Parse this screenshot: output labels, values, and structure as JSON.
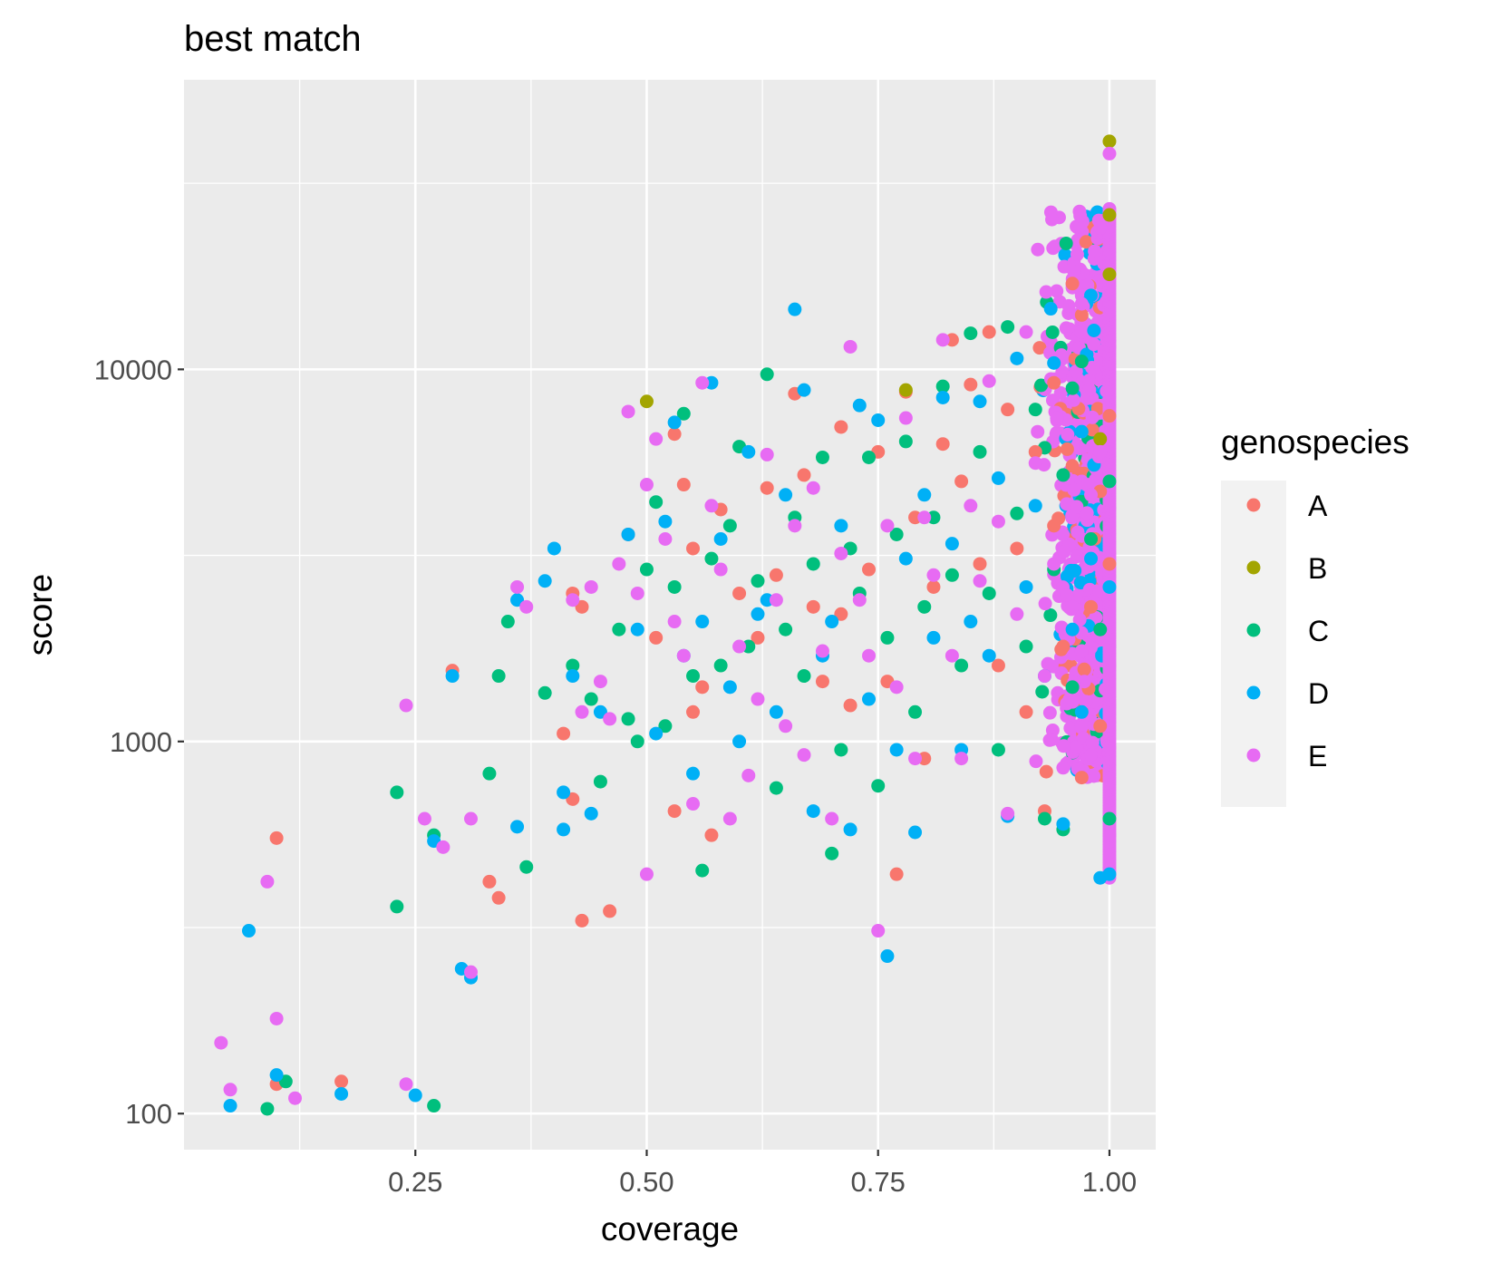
{
  "chart_data": {
    "type": "scatter",
    "title": "best match",
    "xlabel": "coverage",
    "ylabel": "score",
    "xlim": [
      0.0,
      1.05
    ],
    "ylim": [
      80,
      60000
    ],
    "y_scale": "log10",
    "x_ticks": [
      {
        "value": 0.25,
        "label": "0.25"
      },
      {
        "value": 0.5,
        "label": "0.50"
      },
      {
        "value": 0.75,
        "label": "0.75"
      },
      {
        "value": 1.0,
        "label": "1.00"
      }
    ],
    "x_minor_ticks": [
      0.125,
      0.375,
      0.625,
      0.875
    ],
    "y_ticks": [
      {
        "value": 100,
        "label": "100"
      },
      {
        "value": 1000,
        "label": "1000"
      },
      {
        "value": 10000,
        "label": "10000"
      }
    ],
    "y_minor_ticks": [
      316.2,
      3162.3,
      31622.8
    ],
    "grid": true,
    "background": "#ebebeb",
    "legend": {
      "title": "genospecies",
      "position": "right"
    },
    "series": [
      {
        "name": "A",
        "color": "#f8766d",
        "points": [
          [
            0.1,
            550
          ],
          [
            0.1,
            120
          ],
          [
            0.17,
            122
          ],
          [
            0.29,
            1550
          ],
          [
            0.33,
            420
          ],
          [
            0.34,
            380
          ],
          [
            0.41,
            1050
          ],
          [
            0.42,
            700
          ],
          [
            0.43,
            330
          ],
          [
            0.46,
            350
          ],
          [
            0.42,
            2500
          ],
          [
            0.43,
            2300
          ],
          [
            0.48,
            3600
          ],
          [
            0.51,
            1900
          ],
          [
            0.53,
            6700
          ],
          [
            0.54,
            4900
          ],
          [
            0.55,
            3300
          ],
          [
            0.55,
            1200
          ],
          [
            0.53,
            650
          ],
          [
            0.56,
            1400
          ],
          [
            0.57,
            560
          ],
          [
            0.58,
            4200
          ],
          [
            0.6,
            2500
          ],
          [
            0.62,
            1900
          ],
          [
            0.63,
            4800
          ],
          [
            0.64,
            2800
          ],
          [
            0.66,
            8600
          ],
          [
            0.67,
            5200
          ],
          [
            0.68,
            2300
          ],
          [
            0.69,
            1450
          ],
          [
            0.71,
            7000
          ],
          [
            0.71,
            2200
          ],
          [
            0.72,
            1250
          ],
          [
            0.74,
            2900
          ],
          [
            0.75,
            6000
          ],
          [
            0.76,
            1450
          ],
          [
            0.77,
            440
          ],
          [
            0.78,
            8700
          ],
          [
            0.79,
            4000
          ],
          [
            0.8,
            900
          ],
          [
            0.81,
            2600
          ],
          [
            0.82,
            6300
          ],
          [
            0.83,
            12000
          ],
          [
            0.84,
            5000
          ],
          [
            0.85,
            9100
          ],
          [
            0.86,
            3000
          ],
          [
            0.87,
            12600
          ],
          [
            0.88,
            1600
          ],
          [
            0.89,
            7800
          ],
          [
            0.9,
            3300
          ],
          [
            0.91,
            1200
          ],
          [
            0.92,
            6000
          ],
          [
            0.93,
            650
          ],
          [
            0.94,
            3800
          ],
          [
            0.95,
            1800
          ],
          [
            0.96,
            17000
          ],
          [
            0.97,
            800
          ],
          [
            0.98,
            2300
          ],
          [
            0.99,
            4700
          ],
          [
            1.0,
            7500
          ],
          [
            1.0,
            3000
          ],
          [
            0.97,
            14000
          ],
          [
            0.96,
            5500
          ],
          [
            0.99,
            1100
          ],
          [
            0.94,
            9200
          ]
        ]
      },
      {
        "name": "B",
        "color": "#a3a500",
        "points": [
          [
            1.0,
            41000
          ],
          [
            1.0,
            26000
          ],
          [
            0.5,
            8200
          ],
          [
            0.78,
            8800
          ],
          [
            1.0,
            18000
          ],
          [
            0.99,
            6500
          ]
        ]
      },
      {
        "name": "C",
        "color": "#00bf7d",
        "points": [
          [
            0.09,
            103
          ],
          [
            0.11,
            122
          ],
          [
            0.23,
            730
          ],
          [
            0.23,
            360
          ],
          [
            0.27,
            105
          ],
          [
            0.27,
            560
          ],
          [
            0.33,
            820
          ],
          [
            0.34,
            1500
          ],
          [
            0.35,
            2100
          ],
          [
            0.37,
            460
          ],
          [
            0.39,
            1350
          ],
          [
            0.42,
            1600
          ],
          [
            0.44,
            1300
          ],
          [
            0.45,
            780
          ],
          [
            0.47,
            2000
          ],
          [
            0.48,
            1150
          ],
          [
            0.49,
            1000
          ],
          [
            0.5,
            2900
          ],
          [
            0.51,
            4400
          ],
          [
            0.52,
            1100
          ],
          [
            0.53,
            2600
          ],
          [
            0.54,
            7600
          ],
          [
            0.55,
            1500
          ],
          [
            0.56,
            450
          ],
          [
            0.57,
            3100
          ],
          [
            0.58,
            1600
          ],
          [
            0.59,
            3800
          ],
          [
            0.6,
            6200
          ],
          [
            0.61,
            1800
          ],
          [
            0.62,
            2700
          ],
          [
            0.63,
            9700
          ],
          [
            0.64,
            750
          ],
          [
            0.65,
            2000
          ],
          [
            0.66,
            4000
          ],
          [
            0.67,
            1500
          ],
          [
            0.68,
            3000
          ],
          [
            0.69,
            5800
          ],
          [
            0.7,
            500
          ],
          [
            0.71,
            950
          ],
          [
            0.72,
            3300
          ],
          [
            0.73,
            2500
          ],
          [
            0.74,
            5800
          ],
          [
            0.75,
            760
          ],
          [
            0.76,
            1900
          ],
          [
            0.77,
            3600
          ],
          [
            0.78,
            6400
          ],
          [
            0.79,
            1200
          ],
          [
            0.8,
            2300
          ],
          [
            0.81,
            4000
          ],
          [
            0.82,
            9000
          ],
          [
            0.83,
            2800
          ],
          [
            0.84,
            1600
          ],
          [
            0.85,
            12500
          ],
          [
            0.86,
            6000
          ],
          [
            0.87,
            2500
          ],
          [
            0.88,
            950
          ],
          [
            0.89,
            13000
          ],
          [
            0.9,
            4100
          ],
          [
            0.91,
            1800
          ],
          [
            0.92,
            7800
          ],
          [
            0.93,
            620
          ],
          [
            0.94,
            2900
          ],
          [
            0.95,
            5200
          ],
          [
            0.96,
            1400
          ],
          [
            0.97,
            10500
          ],
          [
            0.98,
            3500
          ],
          [
            0.99,
            2000
          ],
          [
            1.0,
            620
          ],
          [
            1.0,
            5000
          ],
          [
            0.96,
            8900
          ],
          [
            0.95,
            580
          ]
        ]
      },
      {
        "name": "D",
        "color": "#00b0f6",
        "points": [
          [
            0.05,
            105
          ],
          [
            0.07,
            310
          ],
          [
            0.1,
            127
          ],
          [
            0.17,
            113
          ],
          [
            0.25,
            112
          ],
          [
            0.27,
            540
          ],
          [
            0.29,
            1500
          ],
          [
            0.3,
            245
          ],
          [
            0.31,
            232
          ],
          [
            0.36,
            590
          ],
          [
            0.36,
            2400
          ],
          [
            0.39,
            2700
          ],
          [
            0.4,
            3300
          ],
          [
            0.41,
            580
          ],
          [
            0.41,
            730
          ],
          [
            0.42,
            1500
          ],
          [
            0.44,
            640
          ],
          [
            0.45,
            1200
          ],
          [
            0.48,
            3600
          ],
          [
            0.49,
            2000
          ],
          [
            0.51,
            1050
          ],
          [
            0.52,
            3900
          ],
          [
            0.53,
            7200
          ],
          [
            0.54,
            1700
          ],
          [
            0.55,
            820
          ],
          [
            0.56,
            2100
          ],
          [
            0.57,
            9200
          ],
          [
            0.58,
            3500
          ],
          [
            0.59,
            1400
          ],
          [
            0.6,
            1000
          ],
          [
            0.61,
            6000
          ],
          [
            0.62,
            2200
          ],
          [
            0.63,
            2400
          ],
          [
            0.64,
            1200
          ],
          [
            0.65,
            4600
          ],
          [
            0.66,
            14500
          ],
          [
            0.67,
            8800
          ],
          [
            0.68,
            650
          ],
          [
            0.69,
            1700
          ],
          [
            0.7,
            2100
          ],
          [
            0.71,
            3800
          ],
          [
            0.72,
            580
          ],
          [
            0.73,
            8000
          ],
          [
            0.74,
            1300
          ],
          [
            0.75,
            7300
          ],
          [
            0.76,
            265
          ],
          [
            0.77,
            950
          ],
          [
            0.78,
            3100
          ],
          [
            0.79,
            570
          ],
          [
            0.8,
            4600
          ],
          [
            0.81,
            1900
          ],
          [
            0.82,
            8400
          ],
          [
            0.83,
            3400
          ],
          [
            0.84,
            950
          ],
          [
            0.85,
            2100
          ],
          [
            0.86,
            8200
          ],
          [
            0.87,
            1700
          ],
          [
            0.88,
            5100
          ],
          [
            0.89,
            630
          ],
          [
            0.9,
            10700
          ],
          [
            0.91,
            2600
          ],
          [
            0.92,
            4300
          ],
          [
            0.93,
            1500
          ],
          [
            0.94,
            10400
          ],
          [
            0.95,
            600
          ],
          [
            0.96,
            2000
          ],
          [
            0.97,
            6800
          ],
          [
            0.98,
            3100
          ],
          [
            0.99,
            430
          ],
          [
            1.0,
            440
          ],
          [
            1.0,
            2600
          ],
          [
            0.98,
            15800
          ],
          [
            0.97,
            1200
          ]
        ]
      },
      {
        "name": "E",
        "color": "#e76bf3",
        "points": [
          [
            0.04,
            155
          ],
          [
            0.05,
            116
          ],
          [
            0.09,
            420
          ],
          [
            0.1,
            180
          ],
          [
            0.12,
            110
          ],
          [
            0.24,
            1250
          ],
          [
            0.24,
            120
          ],
          [
            0.26,
            620
          ],
          [
            0.28,
            520
          ],
          [
            0.31,
            240
          ],
          [
            0.31,
            620
          ],
          [
            0.36,
            2600
          ],
          [
            0.37,
            2300
          ],
          [
            0.42,
            2400
          ],
          [
            0.43,
            1200
          ],
          [
            0.44,
            2600
          ],
          [
            0.45,
            1450
          ],
          [
            0.46,
            1150
          ],
          [
            0.47,
            3000
          ],
          [
            0.48,
            7700
          ],
          [
            0.49,
            2500
          ],
          [
            0.5,
            440
          ],
          [
            0.5,
            4900
          ],
          [
            0.51,
            6500
          ],
          [
            0.52,
            3500
          ],
          [
            0.53,
            2100
          ],
          [
            0.54,
            1700
          ],
          [
            0.55,
            680
          ],
          [
            0.56,
            9200
          ],
          [
            0.57,
            4300
          ],
          [
            0.58,
            2900
          ],
          [
            0.59,
            620
          ],
          [
            0.6,
            1800
          ],
          [
            0.61,
            810
          ],
          [
            0.62,
            1300
          ],
          [
            0.63,
            5900
          ],
          [
            0.64,
            2400
          ],
          [
            0.65,
            1100
          ],
          [
            0.66,
            3800
          ],
          [
            0.67,
            920
          ],
          [
            0.68,
            4800
          ],
          [
            0.69,
            1750
          ],
          [
            0.7,
            620
          ],
          [
            0.71,
            3200
          ],
          [
            0.72,
            11500
          ],
          [
            0.73,
            2400
          ],
          [
            0.74,
            1700
          ],
          [
            0.75,
            310
          ],
          [
            0.76,
            3800
          ],
          [
            0.77,
            1400
          ],
          [
            0.78,
            7400
          ],
          [
            0.79,
            900
          ],
          [
            0.8,
            4000
          ],
          [
            0.81,
            2800
          ],
          [
            0.82,
            12000
          ],
          [
            0.83,
            1700
          ],
          [
            0.84,
            900
          ],
          [
            0.85,
            4300
          ],
          [
            0.86,
            2700
          ],
          [
            0.87,
            9300
          ],
          [
            0.88,
            3900
          ],
          [
            0.89,
            640
          ],
          [
            0.9,
            2200
          ],
          [
            0.91,
            12600
          ],
          [
            0.92,
            5600
          ],
          [
            0.93,
            1500
          ],
          [
            0.94,
            3000
          ],
          [
            0.95,
            850
          ],
          [
            0.96,
            2300
          ],
          [
            0.97,
            15000
          ],
          [
            0.98,
            920
          ],
          [
            0.99,
            6000
          ],
          [
            1.0,
            38000
          ],
          [
            1.0,
            1600
          ],
          [
            0.99,
            24000
          ],
          [
            1.0,
            560
          ],
          [
            0.98,
            4600
          ],
          [
            0.97,
            1750
          ]
        ]
      }
    ],
    "dense_band": {
      "x_range": [
        0.92,
        1.0
      ],
      "y_range": [
        430,
        27000
      ],
      "color": "#e76bf3",
      "mixed_colors": [
        "#f8766d",
        "#00bf7d",
        "#00b0f6"
      ]
    }
  }
}
